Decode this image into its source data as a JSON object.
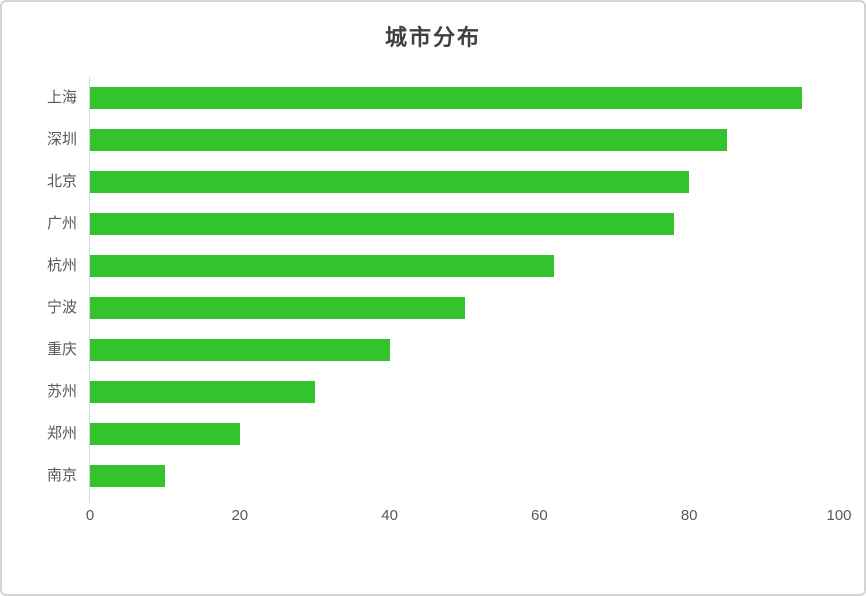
{
  "chart_data": {
    "type": "bar",
    "orientation": "horizontal",
    "title": "城市分布",
    "categories": [
      "上海",
      "深圳",
      "北京",
      "广州",
      "杭州",
      "宁波",
      "重庆",
      "苏州",
      "郑州",
      "南京"
    ],
    "values": [
      95,
      85,
      80,
      78,
      62,
      50,
      40,
      30,
      20,
      10
    ],
    "xlabel": "",
    "ylabel": "",
    "xlim": [
      0,
      100
    ],
    "x_ticks": [
      0,
      20,
      40,
      60,
      80,
      100
    ],
    "grid": "off",
    "legend": "none",
    "colors": {
      "bar": "#32C32D",
      "axis_line": "#D6D6D6",
      "tick_label": "#595959",
      "category_label": "#595959",
      "title": "#404040",
      "background": "#FFFFFF",
      "frame_border": "#D4D4D4"
    }
  }
}
